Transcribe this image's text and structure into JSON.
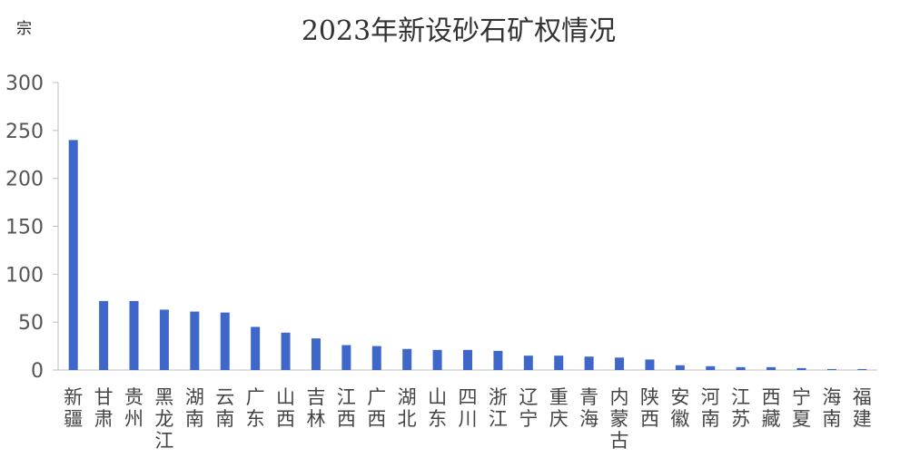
{
  "chart_data": {
    "type": "bar",
    "title": "2023年新设砂石矿权情况",
    "ylabel": "宗",
    "xlabel": "",
    "ylim": [
      0,
      300
    ],
    "yticks": [
      0,
      50,
      100,
      150,
      200,
      250,
      300
    ],
    "grid": false,
    "legend": "none",
    "bar_color": "#3e67c9",
    "categories": [
      "新疆",
      "甘肃",
      "贵州",
      "黑龙江",
      "湖南",
      "云南",
      "广东",
      "山西",
      "吉林",
      "江西",
      "广西",
      "湖北",
      "山东",
      "四川",
      "浙江",
      "辽宁",
      "重庆",
      "青海",
      "内蒙古",
      "陕西",
      "安徽",
      "河南",
      "江苏",
      "西藏",
      "宁夏",
      "海南",
      "福建"
    ],
    "values": [
      240,
      72,
      72,
      63,
      61,
      60,
      45,
      39,
      33,
      26,
      25,
      22,
      21,
      21,
      20,
      15,
      15,
      14,
      13,
      11,
      5,
      4,
      3,
      3,
      2,
      1,
      1
    ]
  }
}
